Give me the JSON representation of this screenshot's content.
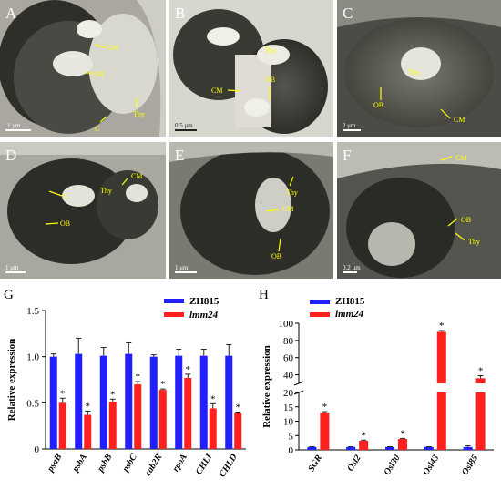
{
  "micrographs": {
    "panels": [
      {
        "letter": "A",
        "scale_bar": "1 μm",
        "labels": [
          "CM",
          "OB",
          "C",
          "Thy"
        ]
      },
      {
        "letter": "B",
        "scale_bar": "0.5 μm",
        "labels": [
          "Thy",
          "CM",
          "OB"
        ]
      },
      {
        "letter": "C",
        "scale_bar": "2 μm",
        "labels": [
          "Thy",
          "OB",
          "CM"
        ]
      },
      {
        "letter": "D",
        "scale_bar": "1 μm",
        "labels": [
          "CM",
          "Thy",
          "C",
          "OB"
        ]
      },
      {
        "letter": "E",
        "scale_bar": "1 μm",
        "labels": [
          "Thy",
          "CM",
          "OB"
        ]
      },
      {
        "letter": "F",
        "scale_bar": "0.2 μm",
        "labels": [
          "CM",
          "OB",
          "Thy"
        ]
      }
    ],
    "label_color": "#ffff00"
  },
  "chart_data": [
    {
      "type": "bar",
      "panel_letter": "G",
      "categories": [
        "psaB",
        "psbA",
        "psbB",
        "psbC",
        "cab2R",
        "rpoA",
        "CHLI",
        "CHLD"
      ],
      "series": [
        {
          "name": "ZH815",
          "color": "#1f1fff",
          "values": [
            1.0,
            1.03,
            1.01,
            1.03,
            1.0,
            1.01,
            1.01,
            1.01
          ],
          "errors": [
            0.03,
            0.17,
            0.09,
            0.12,
            0.02,
            0.07,
            0.07,
            0.12
          ]
        },
        {
          "name": "lmm24",
          "color": "#ff2020",
          "values": [
            0.5,
            0.37,
            0.51,
            0.7,
            0.64,
            0.77,
            0.44,
            0.39
          ],
          "errors": [
            0.05,
            0.04,
            0.03,
            0.03,
            0.01,
            0.04,
            0.05,
            0.01
          ]
        }
      ],
      "significance": [
        "*",
        "*",
        "*",
        "*",
        "*",
        "*",
        "*",
        "*"
      ],
      "ylabel": "Relative expression",
      "ylim": [
        0,
        1.5
      ],
      "yticks": [
        "0",
        "0.5",
        "1.0",
        "1.5"
      ],
      "legend": "top-right"
    },
    {
      "type": "bar",
      "panel_letter": "H",
      "categories": [
        "SGR",
        "Osl2",
        "Osl30",
        "Osl43",
        "Osl85"
      ],
      "series": [
        {
          "name": "ZH815",
          "color": "#1f1fff",
          "values": [
            1.0,
            1.0,
            1.0,
            1.0,
            1.0
          ],
          "errors": [
            0.1,
            0.1,
            0.1,
            0.1,
            0.4
          ]
        },
        {
          "name": "lmm24",
          "color": "#ff2020",
          "values": [
            13,
            3.2,
            3.8,
            90,
            36
          ],
          "errors": [
            0.3,
            0.2,
            0.2,
            1.5,
            3
          ]
        }
      ],
      "significance": [
        "*",
        "*",
        "*",
        "*",
        "*"
      ],
      "ylabel": "Relative expression",
      "ylim": [
        0,
        100
      ],
      "axis_break": [
        20,
        30
      ],
      "yticks_lower": [
        "0",
        "5",
        "10",
        "15",
        "20"
      ],
      "yticks_upper": [
        "40",
        "60",
        "80",
        "100"
      ],
      "legend": "top-left"
    }
  ]
}
